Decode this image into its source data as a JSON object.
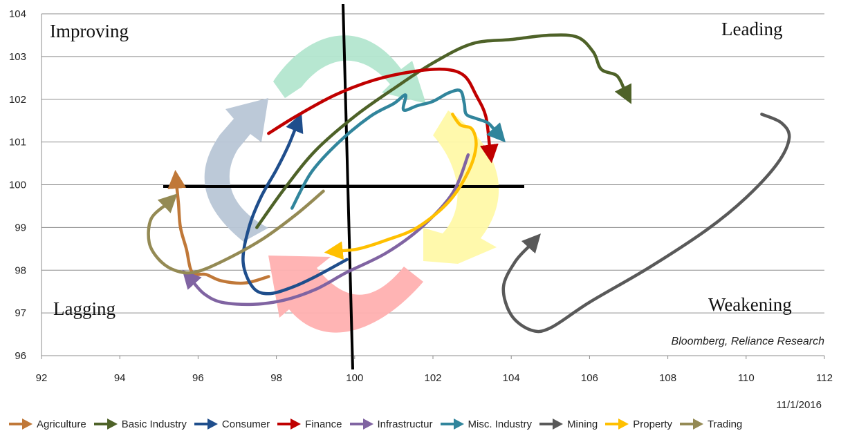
{
  "chart_data": {
    "type": "line",
    "title": "",
    "xlabel": "",
    "ylabel": "",
    "xlim": [
      92,
      112
    ],
    "ylim": [
      96,
      104
    ],
    "x_ticks": [
      "92",
      "94",
      "96",
      "98",
      "100",
      "102",
      "104",
      "106",
      "108",
      "110",
      "112"
    ],
    "y_ticks": [
      "96",
      "97",
      "98",
      "99",
      "100",
      "101",
      "102",
      "103",
      "104"
    ],
    "grid": "horizontal",
    "legend_position": "bottom",
    "quadrants": {
      "improving": "Improving",
      "leading": "Leading",
      "lagging": "Lagging",
      "weakening": "Weakening"
    },
    "source": "Bloomberg, Reliance Research",
    "date": "11/1/2016",
    "cycle_colors": {
      "improving": "#b8c6d6",
      "leading": "#b3e6cf",
      "weakening": "#fff9a8",
      "lagging": "#ffb0b0"
    },
    "series": [
      {
        "name": "Agriculture",
        "color": "#c07838",
        "points": [
          [
            97.8,
            97.85
          ],
          [
            97.2,
            97.7
          ],
          [
            96.6,
            97.75
          ],
          [
            96.2,
            97.9
          ],
          [
            95.85,
            97.95
          ],
          [
            95.7,
            98.5
          ],
          [
            95.55,
            99.0
          ],
          [
            95.5,
            99.55
          ],
          [
            95.45,
            100.0
          ]
        ]
      },
      {
        "name": "Basic Industry",
        "color": "#4e6228",
        "points": [
          [
            97.5,
            99.0
          ],
          [
            98.2,
            99.9
          ],
          [
            99.0,
            100.8
          ],
          [
            100.0,
            101.6
          ],
          [
            101.0,
            102.25
          ],
          [
            102.0,
            102.85
          ],
          [
            103.0,
            103.3
          ],
          [
            104.0,
            103.4
          ],
          [
            105.0,
            103.5
          ],
          [
            105.7,
            103.45
          ],
          [
            106.1,
            103.1
          ],
          [
            106.3,
            102.7
          ],
          [
            106.7,
            102.55
          ],
          [
            106.9,
            102.2
          ]
        ]
      },
      {
        "name": "Consumer",
        "color": "#1f4e8c",
        "points": [
          [
            99.8,
            98.25
          ],
          [
            99.0,
            97.85
          ],
          [
            98.4,
            97.6
          ],
          [
            97.8,
            97.45
          ],
          [
            97.4,
            97.6
          ],
          [
            97.15,
            98.2
          ],
          [
            97.3,
            99.0
          ],
          [
            97.6,
            99.7
          ],
          [
            98.0,
            100.35
          ],
          [
            98.3,
            100.9
          ],
          [
            98.5,
            101.35
          ]
        ]
      },
      {
        "name": "Finance",
        "color": "#c00000",
        "points": [
          [
            97.8,
            101.2
          ],
          [
            98.5,
            101.6
          ],
          [
            99.5,
            102.1
          ],
          [
            100.5,
            102.45
          ],
          [
            101.5,
            102.65
          ],
          [
            102.3,
            102.7
          ],
          [
            102.8,
            102.55
          ],
          [
            103.1,
            102.1
          ],
          [
            103.35,
            101.6
          ],
          [
            103.45,
            100.85
          ]
        ]
      },
      {
        "name": "Infrastructur",
        "color": "#8064a2",
        "points": [
          [
            102.9,
            100.7
          ],
          [
            102.5,
            99.8
          ],
          [
            101.7,
            99.0
          ],
          [
            100.8,
            98.4
          ],
          [
            99.8,
            97.95
          ],
          [
            99.0,
            97.55
          ],
          [
            98.2,
            97.3
          ],
          [
            97.4,
            97.2
          ],
          [
            96.6,
            97.25
          ],
          [
            96.15,
            97.45
          ],
          [
            95.85,
            97.75
          ]
        ]
      },
      {
        "name": "Misc. Industry",
        "color": "#31859c",
        "points": [
          [
            98.4,
            99.45
          ],
          [
            98.9,
            100.3
          ],
          [
            99.6,
            101.0
          ],
          [
            100.4,
            101.6
          ],
          [
            101.0,
            101.9
          ],
          [
            101.3,
            102.1
          ],
          [
            101.25,
            101.75
          ],
          [
            101.6,
            101.85
          ],
          [
            102.0,
            101.95
          ],
          [
            102.4,
            102.15
          ],
          [
            102.7,
            102.2
          ],
          [
            102.8,
            101.9
          ],
          [
            102.85,
            101.65
          ],
          [
            103.1,
            101.55
          ],
          [
            103.4,
            101.45
          ],
          [
            103.6,
            101.25
          ]
        ]
      },
      {
        "name": "Mining",
        "color": "#595959",
        "points": [
          [
            110.4,
            101.65
          ],
          [
            110.9,
            101.45
          ],
          [
            111.1,
            101.1
          ],
          [
            110.8,
            100.5
          ],
          [
            110.0,
            99.7
          ],
          [
            109.0,
            98.95
          ],
          [
            107.5,
            98.05
          ],
          [
            106.0,
            97.25
          ],
          [
            105.0,
            96.65
          ],
          [
            104.5,
            96.6
          ],
          [
            104.0,
            96.95
          ],
          [
            103.8,
            97.6
          ],
          [
            104.1,
            98.2
          ],
          [
            104.5,
            98.6
          ]
        ]
      },
      {
        "name": "Property",
        "color": "#ffc000",
        "points": [
          [
            102.5,
            101.65
          ],
          [
            102.7,
            101.4
          ],
          [
            103.0,
            101.3
          ],
          [
            103.1,
            100.9
          ],
          [
            102.9,
            100.3
          ],
          [
            102.4,
            99.6
          ],
          [
            101.6,
            99.0
          ],
          [
            100.8,
            98.7
          ],
          [
            100.1,
            98.5
          ],
          [
            99.6,
            98.45
          ]
        ]
      },
      {
        "name": "Trading",
        "color": "#948a54",
        "points": [
          [
            99.2,
            99.85
          ],
          [
            98.5,
            99.3
          ],
          [
            97.6,
            98.7
          ],
          [
            96.6,
            98.2
          ],
          [
            95.9,
            97.95
          ],
          [
            95.4,
            98.0
          ],
          [
            95.0,
            98.25
          ],
          [
            94.75,
            98.65
          ],
          [
            94.8,
            99.2
          ],
          [
            95.2,
            99.55
          ]
        ]
      }
    ]
  }
}
